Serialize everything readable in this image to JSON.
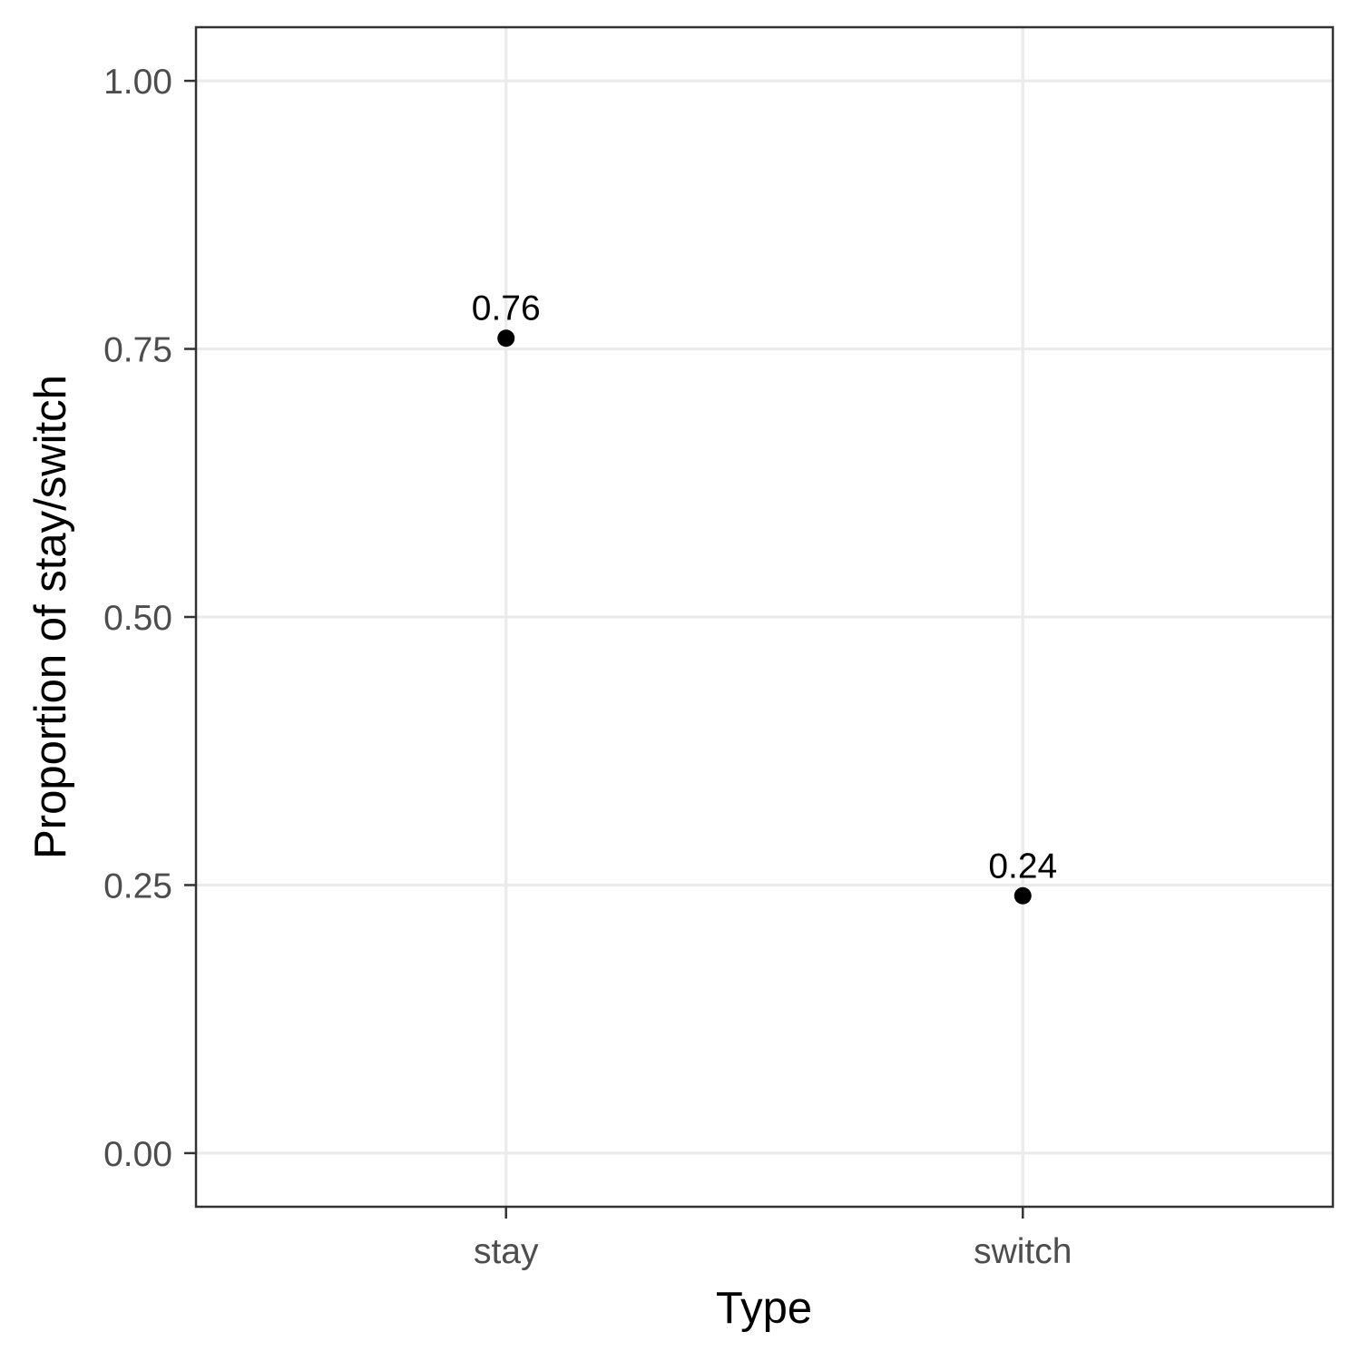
{
  "chart_data": {
    "type": "scatter",
    "categories": [
      "stay",
      "switch"
    ],
    "values": [
      0.76,
      0.24
    ],
    "data_labels": [
      "0.76",
      "0.24"
    ],
    "xlabel": "Type",
    "ylabel": "Proportion of stay/switch",
    "ylim": [
      -0.05,
      1.05
    ],
    "yticks": [
      0,
      0.25,
      0.5,
      0.75,
      1
    ],
    "ytick_labels": [
      "0.00",
      "0.25",
      "0.50",
      "0.75",
      "1.00"
    ],
    "grid": true,
    "legend": "none",
    "colors": {
      "point": "#000000",
      "grid": "#ebebeb",
      "border": "#333333",
      "tick_text": "#4d4d4d"
    }
  }
}
